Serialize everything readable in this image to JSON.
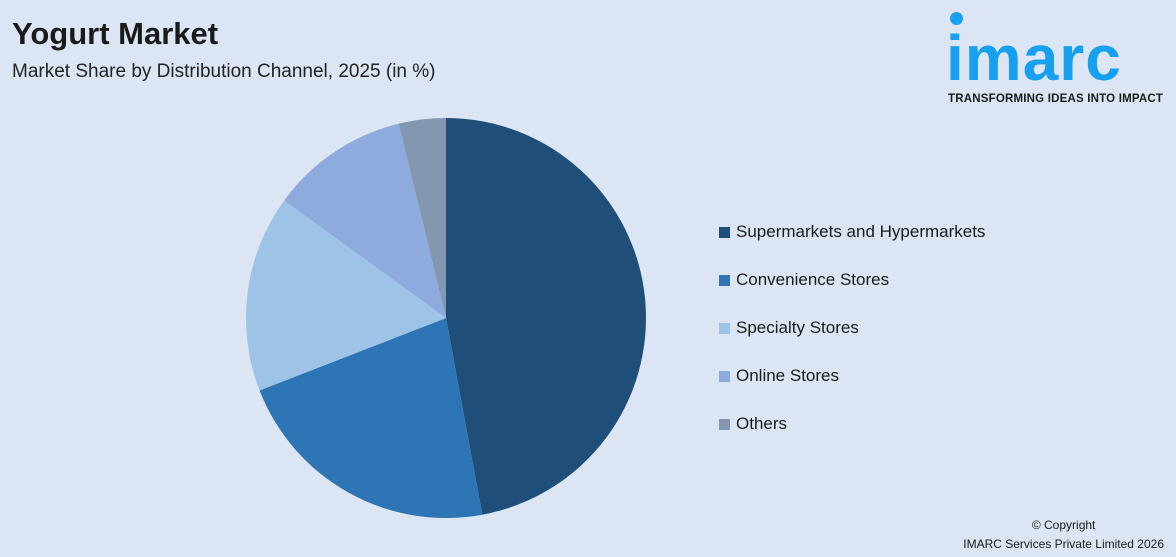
{
  "header": {
    "title": "Yogurt Market",
    "subtitle": "Market Share by Distribution Channel, 2025 (in %)"
  },
  "logo": {
    "word": "imarc",
    "tagline": "TRANSFORMING IDEAS INTO IMPACT",
    "color": "#18a0f0"
  },
  "chart_data": {
    "type": "pie",
    "title": "Yogurt Market",
    "subtitle": "Market Share by Distribution Channel, 2025 (in %)",
    "start_angle": "12 o'clock, clockwise",
    "legend_position": "right",
    "categories": [
      "Supermarkets and Hypermarkets",
      "Convenience Stores",
      "Specialty Stores",
      "Online Stores",
      "Others"
    ],
    "values": [
      47.1,
      22.0,
      15.9,
      11.2,
      3.8
    ],
    "colors": [
      "#1f4e79",
      "#2e75b6",
      "#9dc3e6",
      "#8faadc",
      "#8497b0"
    ]
  },
  "footer": {
    "copyright": "© Copyright",
    "company": "IMARC Services Private Limited 2026"
  }
}
